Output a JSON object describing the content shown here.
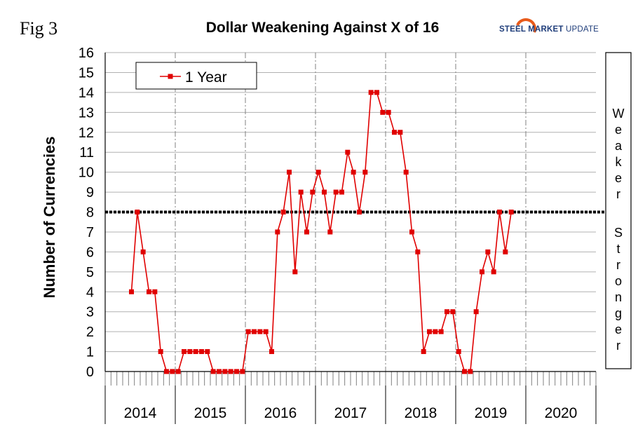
{
  "header": {
    "fig_label": "Fig 3",
    "logo_main": "STEEL MARKET",
    "logo_sub": "UPDATE"
  },
  "colors": {
    "series": "#e00000",
    "grid": "#b0b0b0",
    "year_divider": "#808080",
    "threshold": "#000000",
    "logo_text": "#1f3d7a",
    "logo_arc": "#e85a1a"
  },
  "side_panel": {
    "upper": "Weaker",
    "lower": "Stronger"
  },
  "chart_data": {
    "type": "line",
    "title": "Dollar Weakening Against X of 16",
    "xlabel": "",
    "ylabel": "Number of Currencies",
    "ylim": [
      0,
      16
    ],
    "yticks": [
      0,
      1,
      2,
      3,
      4,
      5,
      6,
      7,
      8,
      9,
      10,
      11,
      12,
      13,
      14,
      15,
      16
    ],
    "years": [
      "2014",
      "2015",
      "2016",
      "2017",
      "2018",
      "2019",
      "2020"
    ],
    "months_per_year": 12,
    "grid": true,
    "legend_position": "top-left",
    "threshold": 8,
    "series": [
      {
        "name": "1 Year",
        "start": "2014-05",
        "values": [
          4,
          8,
          6,
          4,
          4,
          1,
          0,
          0,
          0,
          1,
          1,
          1,
          1,
          1,
          0,
          0,
          0,
          0,
          0,
          0,
          2,
          2,
          2,
          2,
          1,
          7,
          8,
          10,
          5,
          9,
          7,
          9,
          10,
          9,
          7,
          9,
          9,
          11,
          10,
          8,
          10,
          14,
          14,
          13,
          13,
          12,
          12,
          10,
          7,
          6,
          1,
          2,
          2,
          2,
          3,
          3,
          1,
          0,
          0,
          3,
          5,
          6,
          5,
          8,
          6,
          8
        ]
      }
    ]
  }
}
